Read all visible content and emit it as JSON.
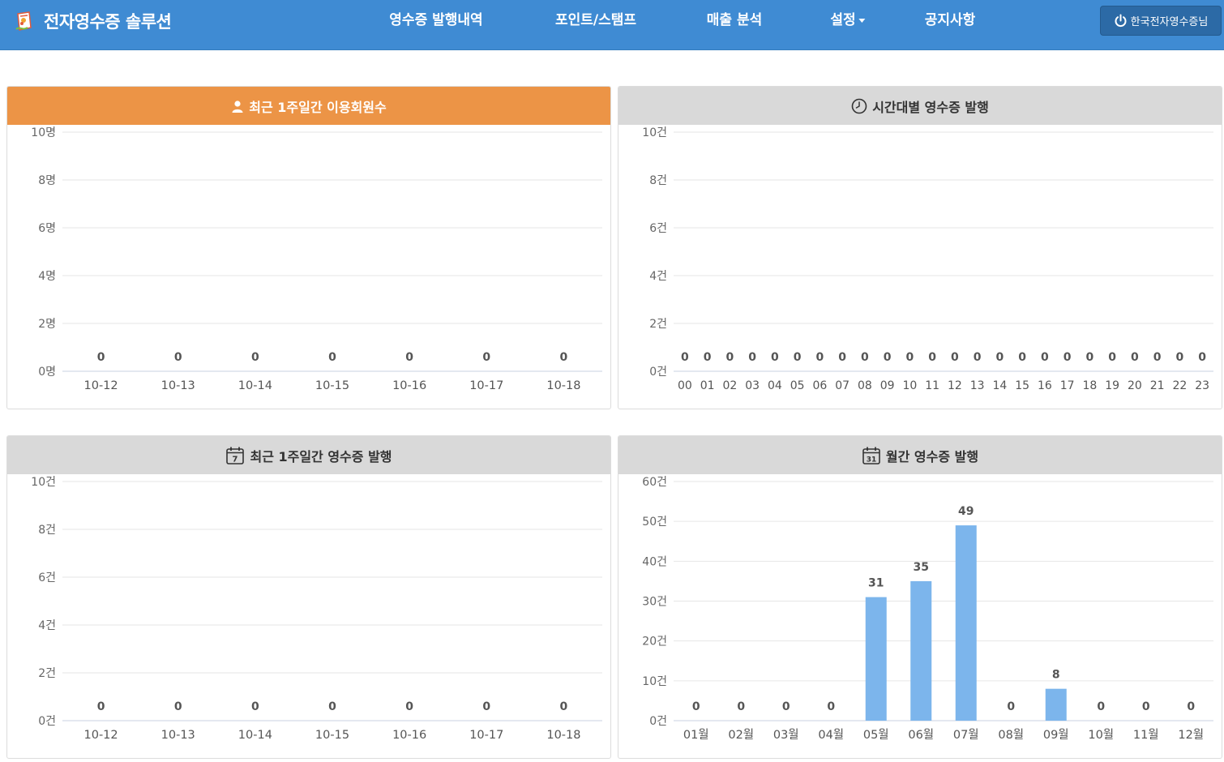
{
  "navbar": {
    "brand": "전자영수증 솔루션",
    "items": [
      {
        "label": "영수증 발행내역"
      },
      {
        "label": "포인트/스탬프"
      },
      {
        "label": "매출 분석"
      },
      {
        "label": "설정"
      },
      {
        "label": "공지사항"
      }
    ],
    "user_label": "한국전자영수증님"
  },
  "colors": {
    "navbar": "#3f8bd3",
    "orange_header": "#ec9446",
    "gray_header": "#d9d9d9",
    "bar": "#7cb5ec"
  },
  "panels": [
    {
      "title": "최근 1주일간 이용회원수",
      "icon": "user-icon"
    },
    {
      "title": "시간대별 영수증 발행",
      "icon": "clock-icon"
    },
    {
      "title": "최근 1주일간 영수증 발행",
      "icon": "calendar-7-icon",
      "icon_text": "7"
    },
    {
      "title": "월간 영수증 발행",
      "icon": "calendar-31-icon",
      "icon_text": "31"
    }
  ],
  "chart_data": [
    {
      "type": "bar",
      "categories": [
        "10-12",
        "10-13",
        "10-14",
        "10-15",
        "10-16",
        "10-17",
        "10-18"
      ],
      "values": [
        0,
        0,
        0,
        0,
        0,
        0,
        0
      ],
      "ylim": [
        0,
        10
      ],
      "yticks": [
        0,
        2,
        4,
        6,
        8,
        10
      ],
      "ytick_suffix": "명"
    },
    {
      "type": "bar",
      "categories": [
        "00",
        "01",
        "02",
        "03",
        "04",
        "05",
        "06",
        "07",
        "08",
        "09",
        "10",
        "11",
        "12",
        "13",
        "14",
        "15",
        "16",
        "17",
        "18",
        "19",
        "20",
        "21",
        "22",
        "23"
      ],
      "values": [
        0,
        0,
        0,
        0,
        0,
        0,
        0,
        0,
        0,
        0,
        0,
        0,
        0,
        0,
        0,
        0,
        0,
        0,
        0,
        0,
        0,
        0,
        0,
        0
      ],
      "ylim": [
        0,
        10
      ],
      "yticks": [
        0,
        2,
        4,
        6,
        8,
        10
      ],
      "ytick_suffix": "건"
    },
    {
      "type": "bar",
      "categories": [
        "10-12",
        "10-13",
        "10-14",
        "10-15",
        "10-16",
        "10-17",
        "10-18"
      ],
      "values": [
        0,
        0,
        0,
        0,
        0,
        0,
        0
      ],
      "ylim": [
        0,
        10
      ],
      "yticks": [
        0,
        2,
        4,
        6,
        8,
        10
      ],
      "ytick_suffix": "건"
    },
    {
      "type": "bar",
      "categories": [
        "01월",
        "02월",
        "03월",
        "04월",
        "05월",
        "06월",
        "07월",
        "08월",
        "09월",
        "10월",
        "11월",
        "12월"
      ],
      "values": [
        0,
        0,
        0,
        0,
        31,
        35,
        49,
        0,
        8,
        0,
        0,
        0
      ],
      "ylim": [
        0,
        60
      ],
      "yticks": [
        0,
        10,
        20,
        30,
        40,
        50,
        60
      ],
      "ytick_suffix": "건"
    }
  ]
}
